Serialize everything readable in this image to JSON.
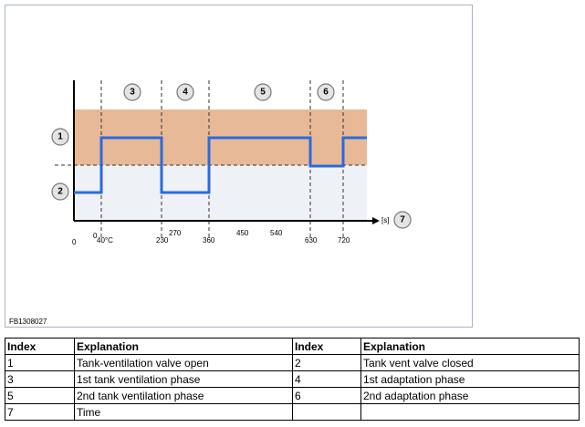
{
  "figure": {
    "code": "FB1308027",
    "callouts": [
      "1",
      "2",
      "3",
      "4",
      "5",
      "6",
      "7"
    ],
    "axis_unit": "[s]",
    "ticks": [
      "0",
      "0",
      "40°C",
      "230",
      "270",
      "360",
      "450",
      "540",
      "630",
      "720"
    ]
  },
  "table": {
    "header": [
      "Index",
      "Explanation",
      "Index",
      "Explanation"
    ],
    "rows": [
      [
        "1",
        "Tank-ventilation valve open",
        "2",
        "Tank vent valve closed"
      ],
      [
        "3",
        "1st tank ventilation phase",
        "4",
        "1st adaptation phase"
      ],
      [
        "5",
        "2nd tank ventilation phase",
        "6",
        "2nd adaptation phase"
      ],
      [
        "7",
        "Time",
        "",
        ""
      ]
    ]
  }
}
